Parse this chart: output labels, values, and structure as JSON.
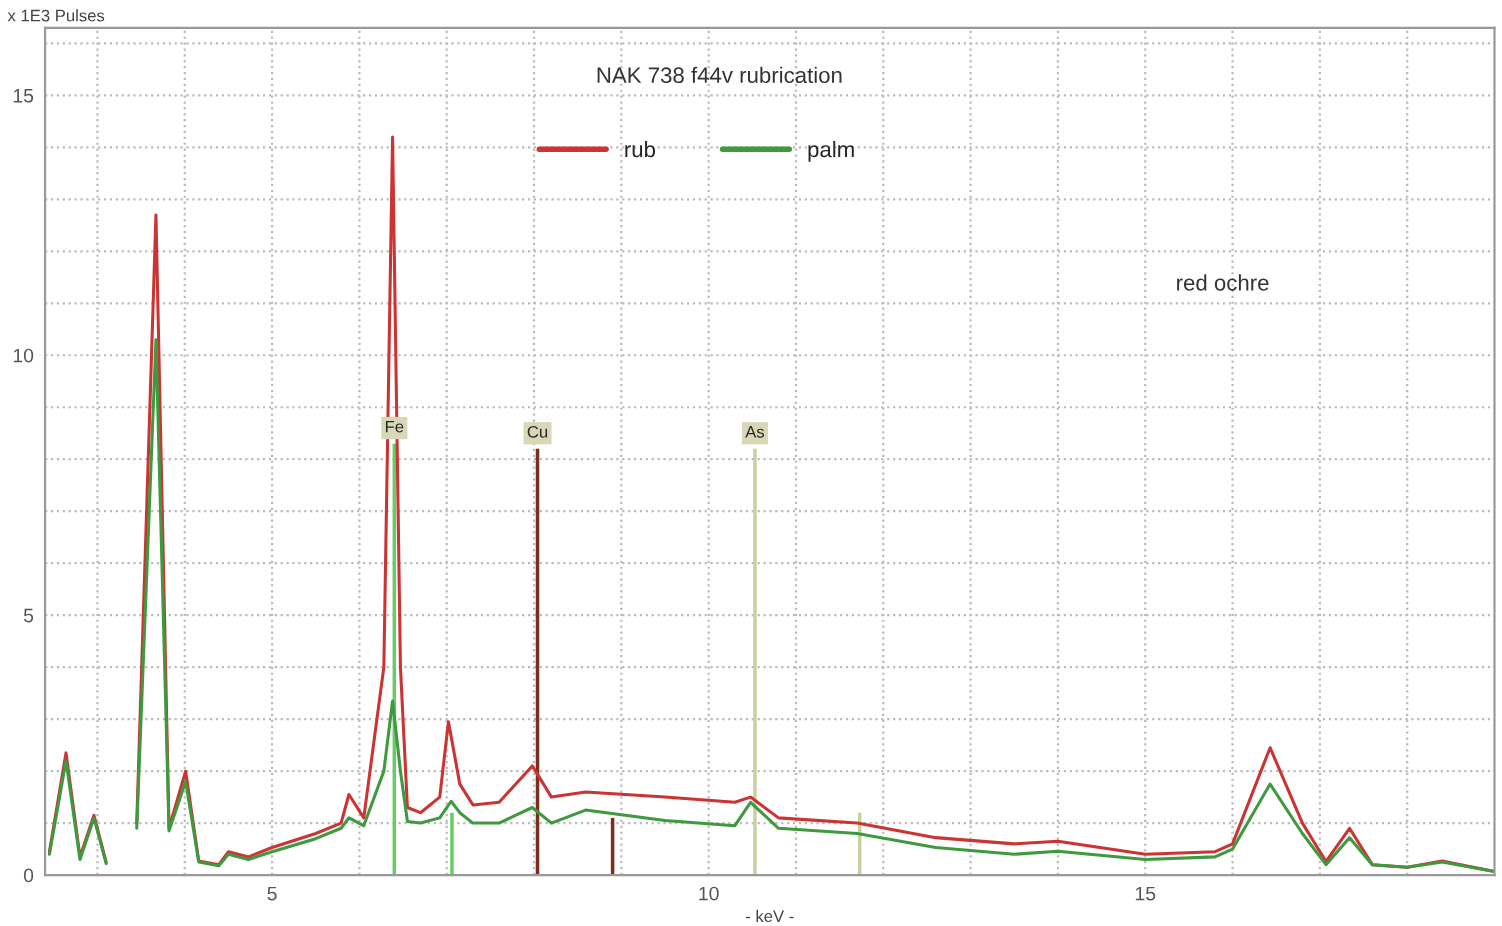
{
  "chart_data": {
    "type": "line",
    "title": "NAK 738 f44v rubrication",
    "xlabel": "- keV -",
    "ylabel": "x 1E3 Pulses",
    "xlim": [
      2.4,
      19.0
    ],
    "ylim": [
      0,
      16.3
    ],
    "xticks": [
      {
        "value": 3,
        "label": null
      },
      {
        "value": 4,
        "label": null
      },
      5,
      {
        "value": 6,
        "label": null
      },
      {
        "value": 7,
        "label": null
      },
      {
        "value": 8,
        "label": null
      },
      {
        "value": 9,
        "label": null
      },
      10,
      {
        "value": 11,
        "label": null
      },
      {
        "value": 12,
        "label": null
      },
      {
        "value": 13,
        "label": null
      },
      {
        "value": 14,
        "label": null
      },
      15,
      {
        "value": 16,
        "label": null
      },
      {
        "value": 17,
        "label": null
      },
      {
        "value": 18,
        "label": null
      }
    ],
    "yticks": [
      0,
      {
        "value": 1,
        "label": null
      },
      {
        "value": 2,
        "label": null
      },
      {
        "value": 3,
        "label": null
      },
      {
        "value": 4,
        "label": null
      },
      5,
      {
        "value": 6,
        "label": null
      },
      {
        "value": 7,
        "label": null
      },
      {
        "value": 8,
        "label": null
      },
      {
        "value": 9,
        "label": null
      },
      10,
      {
        "value": 11,
        "label": null
      },
      {
        "value": 12,
        "label": null
      },
      {
        "value": 13,
        "label": null
      },
      {
        "value": 14,
        "label": null
      },
      15,
      {
        "value": 16,
        "label": null
      }
    ],
    "grid": true,
    "legend": "top",
    "series": [
      {
        "name": "rub",
        "color": "#cc3333",
        "x": [
          2.45,
          2.64,
          2.8,
          2.96,
          3.1,
          3.25,
          3.38,
          3.45,
          3.67,
          3.82,
          4.01,
          4.16,
          4.39,
          4.5,
          4.73,
          5.0,
          5.5,
          5.79,
          5.88,
          6.05,
          6.28,
          6.38,
          6.47,
          6.55,
          6.7,
          6.92,
          7.02,
          7.15,
          7.3,
          7.6,
          7.98,
          8.2,
          8.59,
          9.5,
          10.3,
          10.48,
          10.8,
          11.7,
          12.6,
          13.5,
          14.0,
          15.0,
          15.8,
          16.0,
          16.43,
          16.8,
          17.07,
          17.34,
          17.6,
          18.0,
          18.4,
          19.0
        ],
        "values": [
          0.45,
          2.35,
          0.35,
          1.15,
          0.25,
          null,
          null,
          1.0,
          12.7,
          0.9,
          2.0,
          0.27,
          0.2,
          0.45,
          0.35,
          0.53,
          0.8,
          1.0,
          1.55,
          1.1,
          4.0,
          14.2,
          4.0,
          1.3,
          1.2,
          1.5,
          2.95,
          1.75,
          1.35,
          1.4,
          2.1,
          1.5,
          1.6,
          1.5,
          1.4,
          1.5,
          1.1,
          1.0,
          0.72,
          0.6,
          0.65,
          0.4,
          0.45,
          0.6,
          2.45,
          1.0,
          0.26,
          0.9,
          0.2,
          0.15,
          0.27,
          0.07
        ]
      },
      {
        "name": "palm",
        "color": "#3f9a3f",
        "x": [
          2.45,
          2.64,
          2.8,
          2.96,
          3.1,
          3.25,
          3.38,
          3.45,
          3.67,
          3.82,
          4.01,
          4.16,
          4.39,
          4.5,
          4.73,
          5.0,
          5.5,
          5.79,
          5.88,
          6.05,
          6.28,
          6.38,
          6.47,
          6.55,
          6.7,
          6.92,
          7.05,
          7.15,
          7.3,
          7.6,
          7.98,
          8.2,
          8.59,
          9.5,
          10.3,
          10.48,
          10.8,
          11.7,
          12.6,
          13.5,
          14.0,
          15.0,
          15.8,
          16.0,
          16.43,
          16.8,
          17.07,
          17.34,
          17.6,
          18.0,
          18.4,
          19.0
        ],
        "values": [
          0.4,
          2.2,
          0.3,
          1.1,
          0.22,
          null,
          null,
          0.9,
          10.3,
          0.85,
          1.8,
          0.25,
          0.18,
          0.4,
          0.3,
          0.45,
          0.7,
          0.9,
          1.1,
          0.95,
          2.0,
          3.35,
          2.0,
          1.03,
          1.0,
          1.1,
          1.42,
          1.2,
          1.0,
          1.0,
          1.3,
          1.0,
          1.25,
          1.05,
          0.95,
          1.4,
          0.9,
          0.8,
          0.53,
          0.4,
          0.46,
          0.3,
          0.35,
          0.5,
          1.75,
          0.8,
          0.2,
          0.72,
          0.2,
          0.15,
          0.25,
          0.07
        ]
      },
      {
        "type": "bar",
        "x": [
          6.4,
          7.06,
          8.04,
          8.9,
          10.53,
          11.73
        ],
        "values": [
          8.3,
          1.2,
          8.2,
          1.1,
          8.2,
          1.2
        ],
        "colors": [
          "#66cc66",
          "#66cc66",
          "#7a2e1e",
          "#7a2e1e",
          "#c8d0a0",
          "#c8d0a0"
        ]
      }
    ],
    "annotations": [
      {
        "text": "Fe",
        "x": 6.4,
        "y": 8.3
      },
      {
        "text": "Cu",
        "x": 8.04,
        "y": 8.2
      },
      {
        "text": "As",
        "x": 10.53,
        "y": 8.2
      },
      "red ochre"
    ]
  }
}
